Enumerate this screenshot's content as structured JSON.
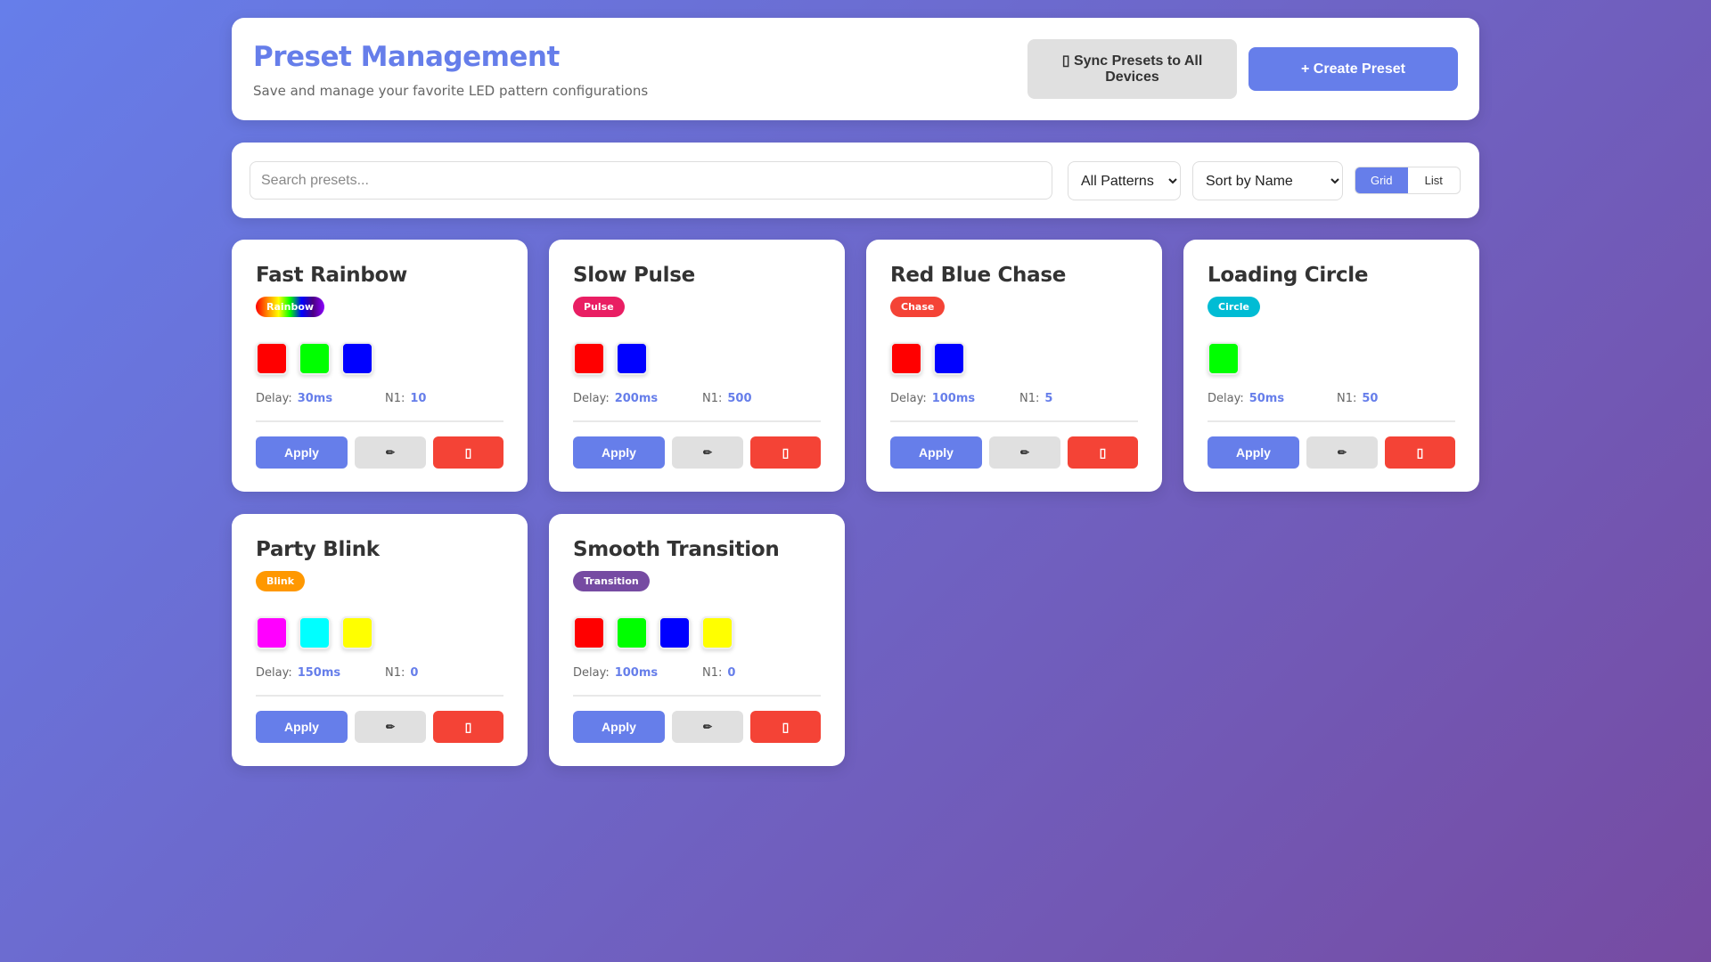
{
  "header": {
    "title": "Preset Management",
    "subtitle": "Save and manage your favorite LED pattern configurations",
    "sync_label": "▯ Sync Presets to All Devices",
    "create_label": "+ Create Preset"
  },
  "toolbar": {
    "search_placeholder": "Search presets...",
    "search_value": "",
    "filter_selected": "All Patterns",
    "sort_selected": "Sort by Name",
    "view_grid": "Grid",
    "view_list": "List",
    "active_view": "Grid"
  },
  "actions": {
    "apply": "Apply",
    "edit_icon": "✏",
    "delete_icon": "▯"
  },
  "labels": {
    "delay": "Delay:",
    "n1": "N1:"
  },
  "presets": [
    {
      "name": "Fast Rainbow",
      "pattern": "Rainbow",
      "badge_color": "rainbow",
      "colors": [
        "#ff0000",
        "#00ff00",
        "#0000ff"
      ],
      "delay": "30ms",
      "n1": "10"
    },
    {
      "name": "Slow Pulse",
      "pattern": "Pulse",
      "badge_color": "#e91e63",
      "colors": [
        "#ff0000",
        "#0000ff"
      ],
      "delay": "200ms",
      "n1": "500"
    },
    {
      "name": "Red Blue Chase",
      "pattern": "Chase",
      "badge_color": "#f44336",
      "colors": [
        "#ff0000",
        "#0000ff"
      ],
      "delay": "100ms",
      "n1": "5"
    },
    {
      "name": "Loading Circle",
      "pattern": "Circle",
      "badge_color": "#00bcd4",
      "colors": [
        "#00ff00"
      ],
      "delay": "50ms",
      "n1": "50"
    },
    {
      "name": "Party Blink",
      "pattern": "Blink",
      "badge_color": "#ff9800",
      "colors": [
        "#ff00ff",
        "#00ffff",
        "#ffff00"
      ],
      "delay": "150ms",
      "n1": "0"
    },
    {
      "name": "Smooth Transition",
      "pattern": "Transition",
      "badge_color": "#764ba2",
      "colors": [
        "#ff0000",
        "#00ff00",
        "#0000ff",
        "#ffff00"
      ],
      "delay": "100ms",
      "n1": "0"
    }
  ]
}
